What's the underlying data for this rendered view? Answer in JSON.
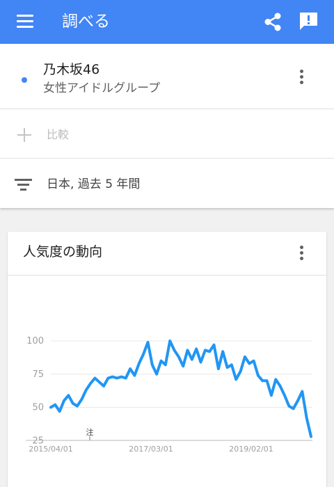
{
  "appbar": {
    "title": "調べる",
    "menu_icon": "menu-icon",
    "share_icon": "share-icon",
    "feedback_icon": "feedback-icon",
    "color": "#4285f4"
  },
  "search": {
    "term": {
      "name": "乃木坂46",
      "type": "女性アイドルグループ",
      "color": "#4285f4"
    },
    "compare_label": "比較",
    "filter_label": "日本, 過去 5 年間"
  },
  "interest": {
    "title": "人気度の動向"
  },
  "chart_data": {
    "type": "line",
    "x_ticks": [
      "2015/04/01",
      "2017/03/01",
      "2019/02/01"
    ],
    "y_ticks": [
      100,
      75,
      50,
      25
    ],
    "ylim": [
      0,
      100
    ],
    "grid": true,
    "annotation": "注",
    "series": [
      {
        "color": "#2196f3",
        "values": [
          50,
          52,
          47,
          55,
          59,
          53,
          51,
          56,
          63,
          68,
          72,
          69,
          66,
          72,
          73,
          72,
          73,
          72,
          79,
          74,
          83,
          90,
          99,
          82,
          75,
          85,
          82,
          100,
          93,
          88,
          81,
          93,
          86,
          94,
          84,
          93,
          92,
          97,
          79,
          92,
          80,
          82,
          71,
          77,
          88,
          83,
          85,
          74,
          70,
          70,
          59,
          71,
          66,
          59,
          51,
          49,
          55,
          62,
          42,
          28
        ]
      }
    ]
  }
}
